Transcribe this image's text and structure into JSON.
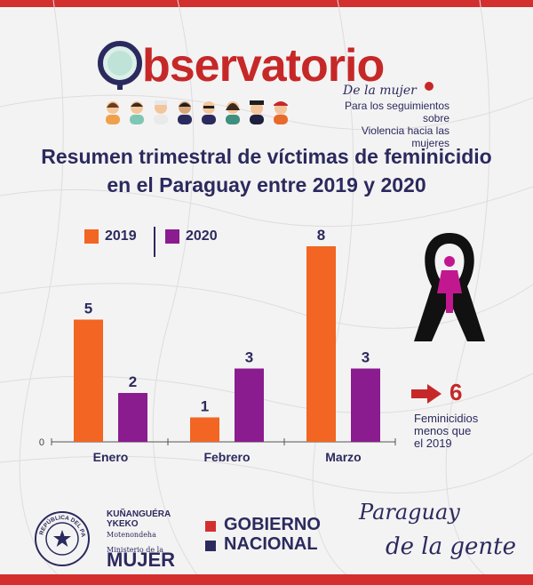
{
  "logo": {
    "word": "bservatorio",
    "subtitle": "De la mujer",
    "tagline_1": "Para los seguimientos sobre",
    "tagline_2": "Violencia hacia las mujeres"
  },
  "title_line_1": "Resumen trimestral de víctimas de feminicidio",
  "title_line_2": "en el Paraguay entre 2019 y 2020",
  "colors": {
    "series_2019": "#f26522",
    "series_2020": "#8a1c8f",
    "accent_red": "#c62828",
    "navy": "#2b2a5e"
  },
  "chart_data": {
    "type": "bar",
    "categories": [
      "Enero",
      "Febrero",
      "Marzo"
    ],
    "series": [
      {
        "name": "2019",
        "values": [
          5,
          1,
          8
        ]
      },
      {
        "name": "2020",
        "values": [
          2,
          3,
          3
        ]
      }
    ],
    "ylim": [
      0,
      8
    ],
    "y_tick_label": "0",
    "legend_position": "top-left",
    "grid": false
  },
  "side": {
    "difference_value": "6",
    "difference_line_1": "Feminicidios",
    "difference_line_2": "menos que",
    "difference_line_3": "el 2019",
    "ribbon_icon": "black-ribbon-woman-icon",
    "arrow_icon": "right-arrow-icon"
  },
  "footer": {
    "ministry_line_1": "KUÑANGUÉRA",
    "ministry_line_2": "YKEKO",
    "ministry_line_3": "Motenondeha",
    "ministry_line_4": "Ministerio de la",
    "ministry_line_5": "MUJER",
    "seal_text": "REPÚBLICA DEL PARAGUAY",
    "gov_line_1": "GOBIERNO",
    "gov_line_2": "NACIONAL",
    "slogan_line_1": "Paraguay",
    "slogan_line_2": "de la gente"
  }
}
